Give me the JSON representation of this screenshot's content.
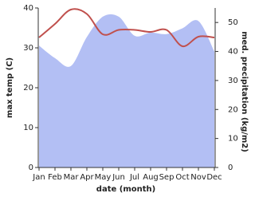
{
  "chart_data": {
    "type": "line",
    "x_label": "date (month)",
    "y_label": "max temp (C)",
    "y2_label": "med. precipitation (kg/m2)",
    "categories": [
      "Jan",
      "Feb",
      "Mar",
      "Apr",
      "May",
      "Jun",
      "Jul",
      "Aug",
      "Sep",
      "Oct",
      "Nov",
      "Dec"
    ],
    "series": [
      {
        "name": "med. precipitation",
        "type": "area",
        "axis": "y2",
        "color": "#b3bff4",
        "values": [
          42,
          37.7,
          35,
          45,
          52,
          52,
          45.4,
          46.5,
          46,
          48,
          50.5,
          40
        ]
      },
      {
        "name": "max temp",
        "type": "line",
        "color": "#c0504d",
        "values": [
          32.6,
          36,
          39.6,
          38.5,
          33.4,
          34.5,
          34.5,
          34,
          34.5,
          30.4,
          32.8,
          32.6
        ]
      }
    ],
    "ylim": [
      0,
      40
    ],
    "yticks": [
      0,
      10,
      20,
      30,
      40
    ],
    "y2lim": [
      0,
      55
    ],
    "y2ticks": [
      0,
      10,
      20,
      30,
      40,
      50
    ]
  }
}
